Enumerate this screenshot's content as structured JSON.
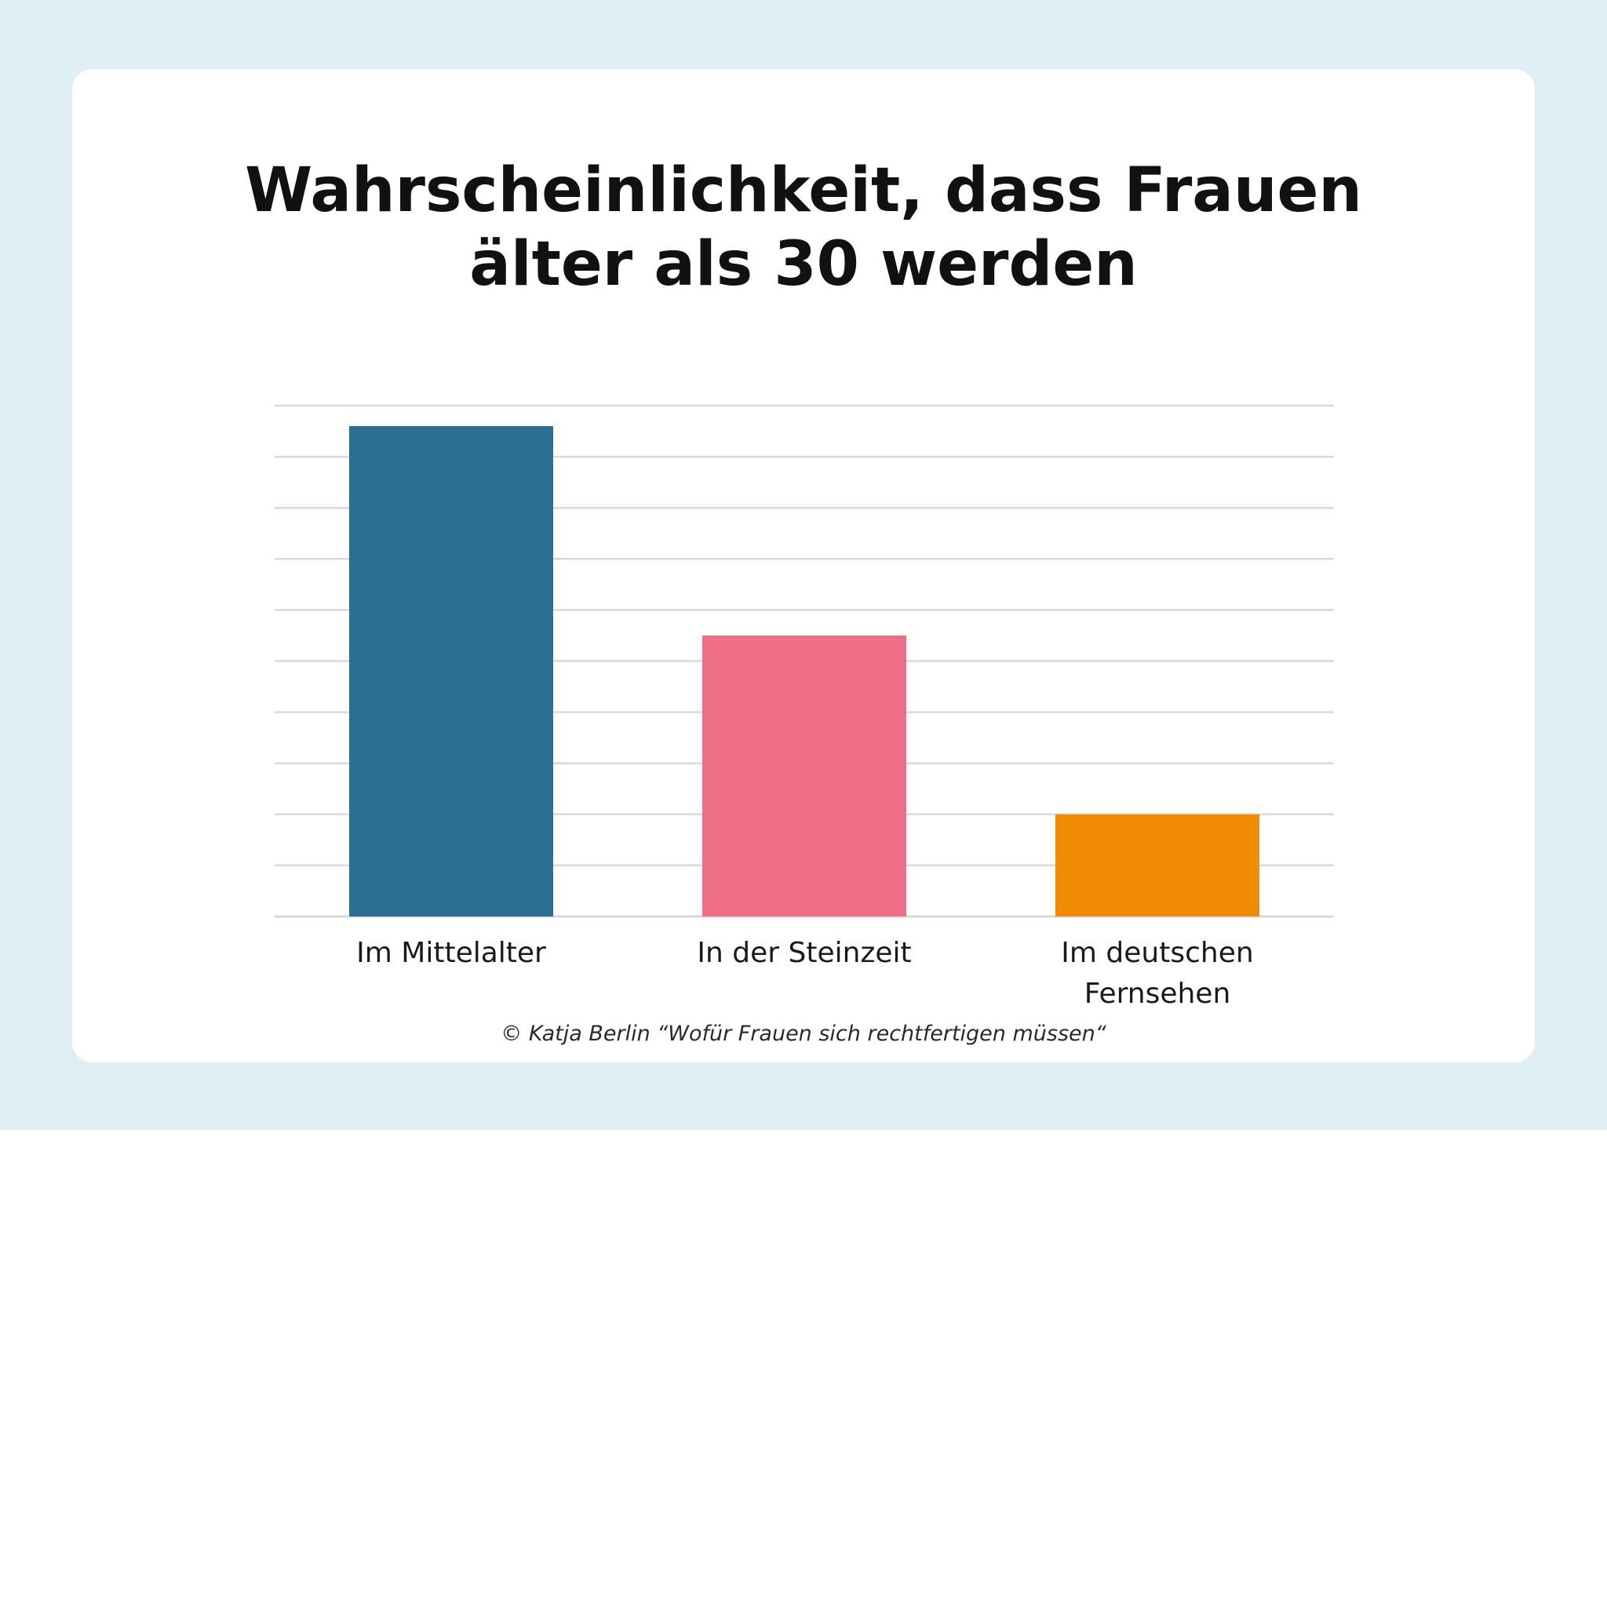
{
  "chart_data": {
    "type": "bar",
    "title_lines": [
      "Wahrscheinlichkeit, dass Frauen",
      "älter als 30 werden"
    ],
    "categories": [
      "Im Mittelalter",
      "In der Steinzeit",
      "Im deutschen Fernsehen"
    ],
    "category_label_lines": [
      [
        "Im Mittelalter"
      ],
      [
        "In der Steinzeit"
      ],
      [
        "Im deutschen",
        "Fernsehen"
      ]
    ],
    "values": [
      9.6,
      5.5,
      2.0
    ],
    "colors": [
      "#2b6f92",
      "#ee6e85",
      "#f28c04"
    ],
    "ylim": [
      0,
      10
    ],
    "gridlines": true,
    "grid_color": "#d9d9d9",
    "xlabel": "",
    "ylabel": ""
  },
  "credit": "© Katja Berlin “Wofür Frauen sich rechtfertigen müssen“"
}
